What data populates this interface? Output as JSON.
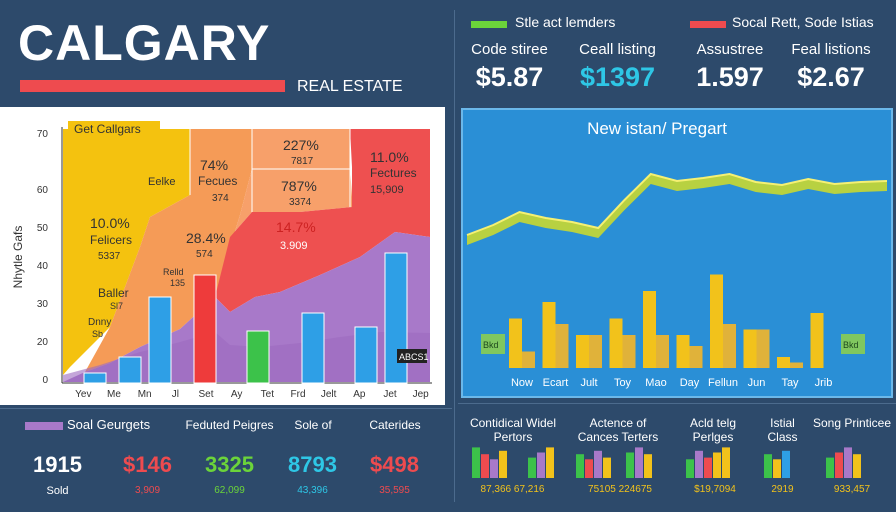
{
  "header": {
    "title": "CALGARY",
    "subtitle": "REAL ESTATE"
  },
  "legend_top": [
    {
      "label": "Stle act lemders",
      "color": "#6bd43a"
    },
    {
      "label": "Socal Rett, Sode Istias",
      "color": "#ee4b4f"
    }
  ],
  "top_stats": [
    {
      "label": "Code stiree",
      "value": "$5.87",
      "color": "#ffffff"
    },
    {
      "label": "Ceall listing",
      "value": "$1397",
      "color": "#2ec7e6"
    },
    {
      "label": "Assustree",
      "value": "1.597",
      "color": "#ffffff"
    },
    {
      "label": "Feal listions",
      "value": "$2.67",
      "color": "#ffffff"
    }
  ],
  "left_chart": {
    "ylabel": "Nhytle Gafs",
    "ticks": [
      "0",
      "20",
      "30",
      "40",
      "50",
      "60",
      "70"
    ],
    "chart_title_box": "Get Callgars",
    "box_label": "ABCS1",
    "annotations": [
      {
        "text": "Get Callgars",
        "color": "#333333"
      },
      {
        "text": "Eelke",
        "color": "#333333"
      },
      {
        "text": "Fecues",
        "color": "#333333"
      },
      {
        "text": "74%",
        "color": "#333333"
      },
      {
        "text": "374",
        "color": "#333333"
      },
      {
        "text": "227%",
        "color": "#333333"
      },
      {
        "text": "7817",
        "color": "#333333"
      },
      {
        "text": "787%",
        "color": "#333333"
      },
      {
        "text": "3374",
        "color": "#333333"
      },
      {
        "text": "11.0%",
        "color": "#333333"
      },
      {
        "text": "Fectures",
        "color": "#333333"
      },
      {
        "text": "15,909",
        "color": "#333333"
      },
      {
        "text": "10.0%",
        "color": "#333333"
      },
      {
        "text": "Felicers",
        "color": "#333333"
      },
      {
        "text": "5337",
        "color": "#333333"
      },
      {
        "text": "28.4%",
        "color": "#333333"
      },
      {
        "text": "574",
        "color": "#333333"
      },
      {
        "text": "14.7%",
        "color": "#cc2222"
      },
      {
        "text": "3.909",
        "color": "#ffffff"
      },
      {
        "text": "Relld",
        "color": "#333333"
      },
      {
        "text": "135",
        "color": "#333333"
      },
      {
        "text": "Baller",
        "color": "#333333"
      },
      {
        "text": "Sl7",
        "color": "#333333"
      },
      {
        "text": "Dnny",
        "color": "#333333"
      },
      {
        "text": "Sb",
        "color": "#333333"
      }
    ]
  },
  "right_chart": {
    "title": "New istan/ Pregart",
    "tag_left": "Bkd",
    "tag_right": "Bkd"
  },
  "bottom_left": {
    "legend": "Soal Geurgets",
    "stats": [
      {
        "label": "",
        "value": "1915",
        "sub": "Sold",
        "color": "#ffffff",
        "sub_color": "#ffffff"
      },
      {
        "label": "",
        "value": "$146",
        "sub": "3,909",
        "color": "#ee4b4f",
        "sub_color": "#ee4b4f"
      },
      {
        "label": "Feduted Peigres",
        "value": "3325",
        "sub": "62,099",
        "color": "#6bd43a",
        "sub_color": "#6bd43a"
      },
      {
        "label": "Sole of",
        "value": "8793",
        "sub": "43,396",
        "color": "#2ec7e6",
        "sub_color": "#2ec7e6"
      },
      {
        "label": "Caterides",
        "value": "$498",
        "sub": "35,595",
        "color": "#ee4b4f",
        "sub_color": "#ee4b4f"
      }
    ]
  },
  "bottom_right": [
    {
      "label": "Contidical Widel Pertors",
      "sub": "87,366 67,216"
    },
    {
      "label": "Actence of Cances Terters",
      "sub": "75105 224675"
    },
    {
      "label": "Acld telg Perlges",
      "sub": "$19,7094"
    },
    {
      "label": "Istial Class",
      "sub": "2919"
    },
    {
      "label": "Song Printicee",
      "sub": "933,457"
    }
  ],
  "colors": {
    "background": "#2d4a6b",
    "red": "#ee4b4f",
    "green": "#6bd43a",
    "cyan": "#2ec7e6",
    "yellow": "#f2c21b",
    "purple": "#a879c9",
    "blue": "#2e9fe6"
  },
  "chart_data": [
    {
      "type": "bar",
      "title": "",
      "ylabel": "Nhytle Gafs",
      "xlabel": "",
      "categories": [
        "Yev",
        "Me",
        "Mn",
        "Jl",
        "Set",
        "Ay",
        "Tet",
        "Frd",
        "Jelt",
        "Ap",
        "Jet",
        "Jep"
      ],
      "values": [
        3,
        8,
        24,
        29,
        0,
        13,
        0,
        19,
        0,
        16,
        0,
        35
      ],
      "colors": [
        "#2e9fe6",
        "#2e9fe6",
        "#2e9fe6",
        "#2e9fe6",
        "#ee3b3b",
        "#ee3b3b",
        "#3cc24a",
        "#2e9fe6",
        "#2e9fe6",
        "#2e9fe6",
        "#ee3b3b",
        "#2e9fe6"
      ],
      "ylim": [
        0,
        70
      ],
      "grid": false
    },
    {
      "type": "bar",
      "title": "New istan/ Pregart",
      "categories": [
        "Now",
        "Ecart",
        "Jult",
        "Toy",
        "Mao",
        "Day",
        "Fellun",
        "Jun",
        "Tay",
        "Jrib"
      ],
      "series": [
        {
          "values": [
            9,
            12,
            6,
            9,
            14,
            6,
            17,
            7,
            2,
            10
          ]
        },
        {
          "values": [
            3,
            8,
            6,
            6,
            6,
            4,
            8,
            7,
            1,
            0
          ]
        }
      ],
      "line": [
        0.25,
        0.35,
        0.48,
        0.42,
        0.38,
        0.32,
        0.6,
        0.86,
        0.79,
        0.82,
        0.86,
        0.78,
        0.75,
        0.81,
        0.76,
        0.78,
        0.79
      ]
    }
  ]
}
